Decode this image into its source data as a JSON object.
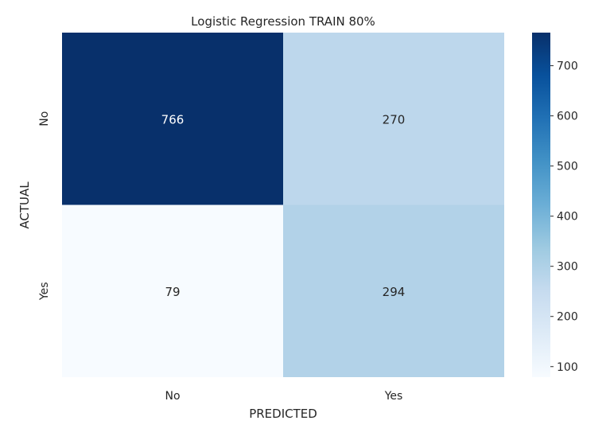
{
  "chart_data": {
    "type": "heatmap",
    "title": "Logistic Regression TRAIN 80%",
    "xlabel": "PREDICTED",
    "ylabel": "ACTUAL",
    "x_categories": [
      "No",
      "Yes"
    ],
    "y_categories": [
      "No",
      "Yes"
    ],
    "values": [
      [
        766,
        270
      ],
      [
        79,
        294
      ]
    ],
    "colormap": "Blues",
    "colorbar": {
      "range": [
        79,
        766
      ],
      "ticks": [
        100,
        200,
        300,
        400,
        500,
        600,
        700
      ]
    },
    "grid": false
  }
}
